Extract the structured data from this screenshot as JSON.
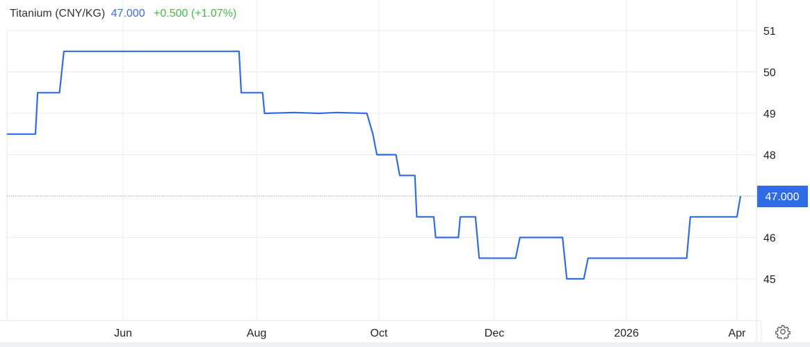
{
  "header": {
    "title": "Titanium (CNY/KG)",
    "price": "47.000",
    "change": "+0.500 (+1.07%)"
  },
  "colors": {
    "line": "#2f6be6",
    "price_label": "#2f6be6",
    "change": "#3fbf3f",
    "grid": "#ebebeb"
  },
  "icons": {
    "settings": "gear-icon"
  },
  "chart_data": {
    "type": "line",
    "title": "Titanium (CNY/KG)",
    "xlabel": "",
    "ylabel": "",
    "ylim": [
      44,
      51.3
    ],
    "y_ticks": [
      "45",
      "46",
      "47",
      "48",
      "49",
      "50",
      "51"
    ],
    "x_ticks": [
      {
        "label": "Jun",
        "date": "2025-06-01"
      },
      {
        "label": "Aug",
        "date": "2025-08-01"
      },
      {
        "label": "Oct",
        "date": "2025-10-01"
      },
      {
        "label": "Dec",
        "date": "2025-12-01"
      },
      {
        "label": "2026",
        "date": "2026-01-01"
      },
      {
        "label": "Apr",
        "date": "2026-04-01"
      }
    ],
    "last_value_label": "47.000",
    "last_value": 47.0,
    "grid": true,
    "series": [
      {
        "points": [
          [
            "2025-04-09",
            48.5
          ],
          [
            "2025-04-22",
            48.5
          ],
          [
            "2025-04-23",
            49.5
          ],
          [
            "2025-05-03",
            49.5
          ],
          [
            "2025-05-05",
            50.5
          ],
          [
            "2025-07-24",
            50.5
          ],
          [
            "2025-07-25",
            49.5
          ],
          [
            "2025-08-04",
            49.5
          ],
          [
            "2025-08-05",
            49.0
          ],
          [
            "2025-08-20",
            49.02
          ],
          [
            "2025-09-01",
            49.0
          ],
          [
            "2025-09-10",
            49.02
          ],
          [
            "2025-09-25",
            49.0
          ],
          [
            "2025-09-28",
            48.5
          ],
          [
            "2025-09-30",
            48.0
          ],
          [
            "2025-10-10",
            48.0
          ],
          [
            "2025-10-12",
            47.5
          ],
          [
            "2025-10-20",
            47.5
          ],
          [
            "2025-10-21",
            46.5
          ],
          [
            "2025-10-30",
            46.5
          ],
          [
            "2025-10-31",
            46.0
          ],
          [
            "2025-11-12",
            46.0
          ],
          [
            "2025-11-13",
            46.5
          ],
          [
            "2025-11-21",
            46.5
          ],
          [
            "2025-11-23",
            45.5
          ],
          [
            "2025-12-06",
            45.5
          ],
          [
            "2025-12-07",
            46.0
          ],
          [
            "2025-12-17",
            46.0
          ],
          [
            "2025-12-18",
            45.0
          ],
          [
            "2025-12-22",
            45.0
          ],
          [
            "2025-12-23",
            45.5
          ],
          [
            "2026-02-19",
            45.5
          ],
          [
            "2026-02-22",
            46.5
          ],
          [
            "2026-04-01",
            46.5
          ],
          [
            "2026-04-04",
            47.0
          ]
        ]
      }
    ]
  }
}
